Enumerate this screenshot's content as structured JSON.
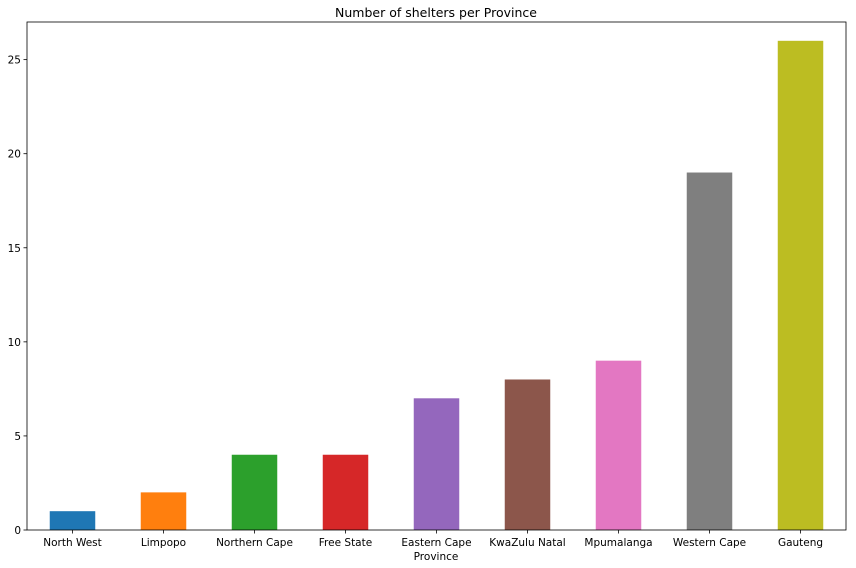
{
  "chart_data": {
    "type": "bar",
    "title": "Number of shelters per Province",
    "xlabel": "Province",
    "ylabel": "",
    "ylim": [
      0,
      27
    ],
    "yticks": [
      0,
      5,
      10,
      15,
      20,
      25
    ],
    "grid": false,
    "categories": [
      "North West",
      "Limpopo",
      "Northern Cape",
      "Free State",
      "Eastern Cape",
      "KwaZulu Natal",
      "Mpumalanga",
      "Western Cape",
      "Gauteng"
    ],
    "values": [
      1,
      2,
      4,
      4,
      7,
      8,
      9,
      19,
      26
    ],
    "colors": [
      "#1f77b4",
      "#ff7f0e",
      "#2ca02c",
      "#d62728",
      "#9467bd",
      "#8c564b",
      "#e377c2",
      "#7f7f7f",
      "#bcbd22"
    ]
  }
}
